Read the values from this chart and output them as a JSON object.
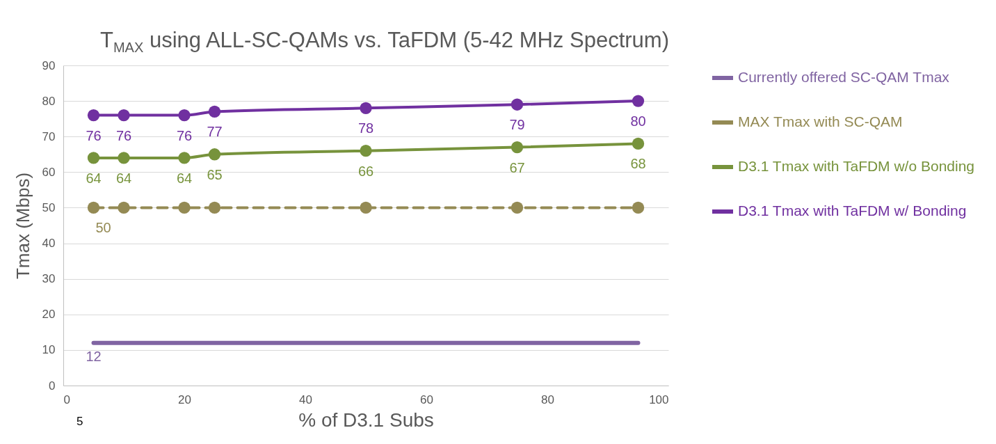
{
  "chart_data": {
    "type": "line",
    "title": "T$_{MAX}$ using ALL-SC-QAMs vs. TaFDM (5-42 MHz Spectrum)",
    "xlabel": "% of D3.1 Subs",
    "ylabel": "Tmax (Mbps)",
    "annotations": [
      "5"
    ],
    "x": [
      5,
      10,
      20,
      25,
      50,
      75,
      95
    ],
    "xlim": [
      0,
      100
    ],
    "xticks": [
      0,
      20,
      40,
      60,
      80,
      100
    ],
    "ylim": [
      0,
      90
    ],
    "yticks": [
      0,
      10,
      20,
      30,
      40,
      50,
      60,
      70,
      80,
      90
    ],
    "grid": "y",
    "legend": "right",
    "series": [
      {
        "name": "Currently offered SC-QAM Tmax",
        "color": "#8064a2",
        "values": [
          12,
          12,
          12,
          12,
          12,
          12,
          12
        ],
        "marker": "none",
        "value_labels": [
          "12",
          null,
          null,
          null,
          null,
          null,
          null
        ]
      },
      {
        "name": "MAX Tmax with SC-QAM",
        "color": "#948a54",
        "values": [
          50,
          50,
          50,
          50,
          50,
          50,
          50
        ],
        "marker": "circle",
        "line_style": "dashed",
        "value_labels": [
          "50",
          null,
          null,
          null,
          null,
          null,
          null
        ]
      },
      {
        "name": "D3.1 Tmax with TaFDM w/o Bonding",
        "color": "#77933c",
        "values": [
          64,
          64,
          64,
          65,
          66,
          67,
          68
        ],
        "marker": "circle",
        "data_labels": true
      },
      {
        "name": "D3.1 Tmax with TaFDM w/ Bonding",
        "color": "#7030a0",
        "values": [
          76,
          76,
          76,
          77,
          78,
          79,
          80
        ],
        "marker": "circle",
        "data_labels": true
      }
    ]
  }
}
